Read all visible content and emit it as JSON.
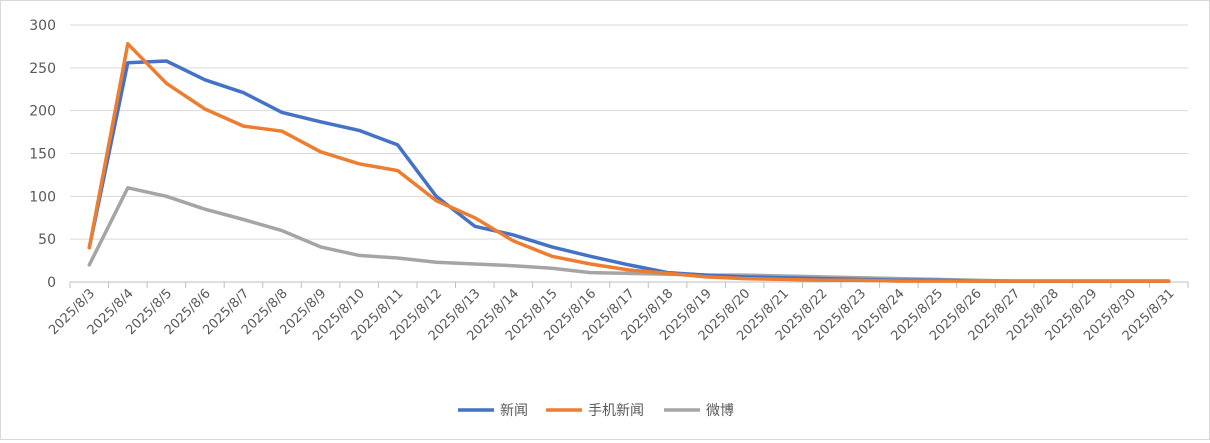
{
  "chart_data": {
    "type": "line",
    "categories": [
      "2025/8/3",
      "2025/8/4",
      "2025/8/5",
      "2025/8/6",
      "2025/8/7",
      "2025/8/8",
      "2025/8/9",
      "2025/8/10",
      "2025/8/11",
      "2025/8/12",
      "2025/8/13",
      "2025/8/14",
      "2025/8/15",
      "2025/8/16",
      "2025/8/17",
      "2025/8/18",
      "2025/8/19",
      "2025/8/20",
      "2025/8/21",
      "2025/8/22",
      "2025/8/23",
      "2025/8/24",
      "2025/8/25",
      "2025/8/26",
      "2025/8/27",
      "2025/8/28",
      "2025/8/29",
      "2025/8/30",
      "2025/8/31"
    ],
    "series": [
      {
        "name": "新闻",
        "color": "#4472C4",
        "values": [
          40,
          256,
          258,
          236,
          221,
          198,
          187,
          177,
          160,
          100,
          65,
          55,
          41,
          30,
          20,
          11,
          8,
          6,
          5,
          4,
          3,
          2,
          2,
          1,
          1,
          1,
          1,
          1,
          1
        ]
      },
      {
        "name": "手机新闻",
        "color": "#ED7D31",
        "values": [
          40,
          278,
          232,
          202,
          182,
          176,
          152,
          138,
          130,
          95,
          75,
          48,
          30,
          21,
          14,
          10,
          6,
          4,
          3,
          2,
          2,
          1,
          1,
          1,
          1,
          1,
          1,
          1,
          1
        ]
      },
      {
        "name": "微博",
        "color": "#A5A5A5",
        "values": [
          20,
          110,
          100,
          85,
          73,
          60,
          41,
          31,
          28,
          23,
          21,
          19,
          16,
          11,
          10,
          9,
          8,
          8,
          7,
          6,
          5,
          4,
          3,
          2,
          1,
          1,
          1,
          1,
          1
        ]
      }
    ],
    "yticks": [
      "0",
      "50",
      "100",
      "150",
      "200",
      "250",
      "300"
    ],
    "ylim": [
      0,
      300
    ],
    "grid": true,
    "legend_position": "bottom"
  }
}
